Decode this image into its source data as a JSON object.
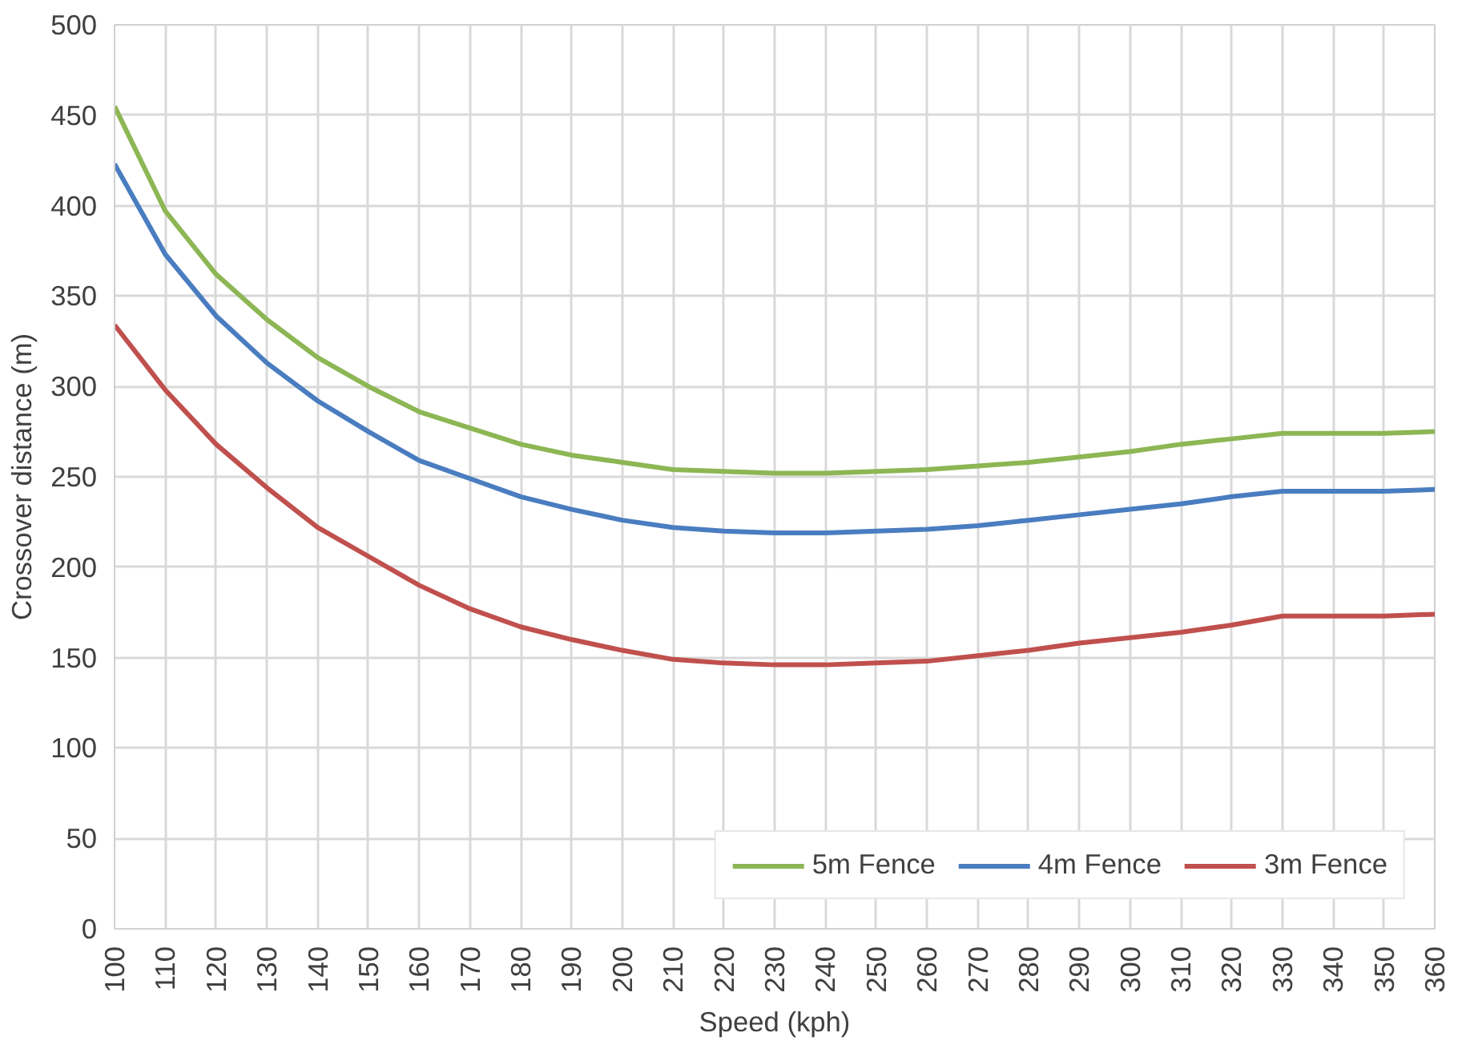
{
  "chart_data": {
    "type": "line",
    "xlabel": "Speed (kph)",
    "ylabel": "Crossover distance (m)",
    "x": [
      100,
      110,
      120,
      130,
      140,
      150,
      160,
      170,
      180,
      190,
      200,
      210,
      220,
      230,
      240,
      250,
      260,
      270,
      280,
      290,
      300,
      310,
      320,
      330,
      340,
      350,
      360
    ],
    "xlim": [
      100,
      360
    ],
    "xticks": [
      100,
      110,
      120,
      130,
      140,
      150,
      160,
      170,
      180,
      190,
      200,
      210,
      220,
      230,
      240,
      250,
      260,
      270,
      280,
      290,
      300,
      310,
      320,
      330,
      340,
      350,
      360
    ],
    "ylim": [
      0,
      500
    ],
    "yticks": [
      0,
      50,
      100,
      150,
      200,
      250,
      300,
      350,
      400,
      450,
      500
    ],
    "grid": true,
    "legend": "bottom right",
    "marker": "none",
    "line_style": "solid",
    "series": [
      {
        "name": "5m Fence",
        "color": "#8db654",
        "values": [
          455,
          397,
          362,
          337,
          316,
          300,
          286,
          277,
          268,
          262,
          258,
          254,
          253,
          252,
          252,
          253,
          254,
          256,
          258,
          261,
          264,
          268,
          271,
          274,
          274,
          274,
          275
        ]
      },
      {
        "name": "4m Fence",
        "color": "#4a7dc0",
        "values": [
          423,
          373,
          339,
          313,
          292,
          275,
          259,
          249,
          239,
          232,
          226,
          222,
          220,
          219,
          219,
          220,
          221,
          223,
          226,
          229,
          232,
          235,
          239,
          242,
          242,
          242,
          243
        ]
      },
      {
        "name": "3m Fence",
        "color": "#c0504d",
        "values": [
          334,
          298,
          268,
          244,
          222,
          206,
          190,
          177,
          167,
          160,
          154,
          149,
          147,
          146,
          146,
          147,
          148,
          151,
          154,
          158,
          161,
          164,
          168,
          173,
          173,
          173,
          174
        ]
      }
    ]
  }
}
